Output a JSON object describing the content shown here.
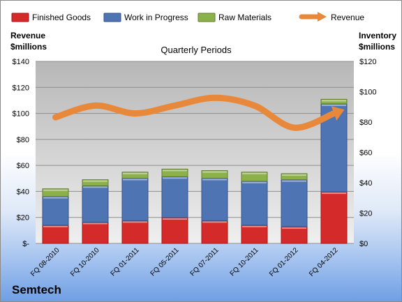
{
  "company": "Semtech",
  "chart_data": {
    "type": "bar",
    "title": "Quarterly Periods",
    "left_axis_label_line1": "Revenue",
    "left_axis_label_line2": "$millions",
    "right_axis_label_line1": "Inventory",
    "right_axis_label_line2": "$millions",
    "categories": [
      "FQ 08-2010",
      "FQ 10-2010",
      "FQ 01-2011",
      "FQ 05-2011",
      "FQ 07-2011",
      "FQ 10-2011",
      "FQ 01-2012",
      "FQ 04-2012"
    ],
    "left_ticks": [
      "$-",
      "$20",
      "$40",
      "$60",
      "$80",
      "$100",
      "$120",
      "$140"
    ],
    "right_ticks": [
      "$0",
      "$20",
      "$40",
      "$60",
      "$80",
      "$100",
      "$120"
    ],
    "left_ylim": [
      0,
      140
    ],
    "right_ylim": [
      0,
      120
    ],
    "stacked": true,
    "series": [
      {
        "name": "Finished Goods",
        "axis": "right",
        "color": "#d42a2a",
        "values": [
          12,
          14,
          15,
          17,
          15,
          12,
          11,
          34
        ]
      },
      {
        "name": "Work in Progress",
        "axis": "right",
        "color": "#4f74b3",
        "values": [
          19,
          24,
          28,
          27,
          28,
          29,
          31,
          58
        ]
      },
      {
        "name": "Raw Materials",
        "axis": "right",
        "color": "#8cb14a",
        "values": [
          5,
          4,
          4,
          5,
          5,
          6,
          4,
          3
        ]
      },
      {
        "name": "Revenue",
        "axis": "left",
        "type": "line",
        "color": "#e8883a",
        "values": [
          97,
          106,
          100,
          106,
          112,
          106,
          89,
          100
        ]
      }
    ],
    "grid": true,
    "legend_position": "top"
  }
}
